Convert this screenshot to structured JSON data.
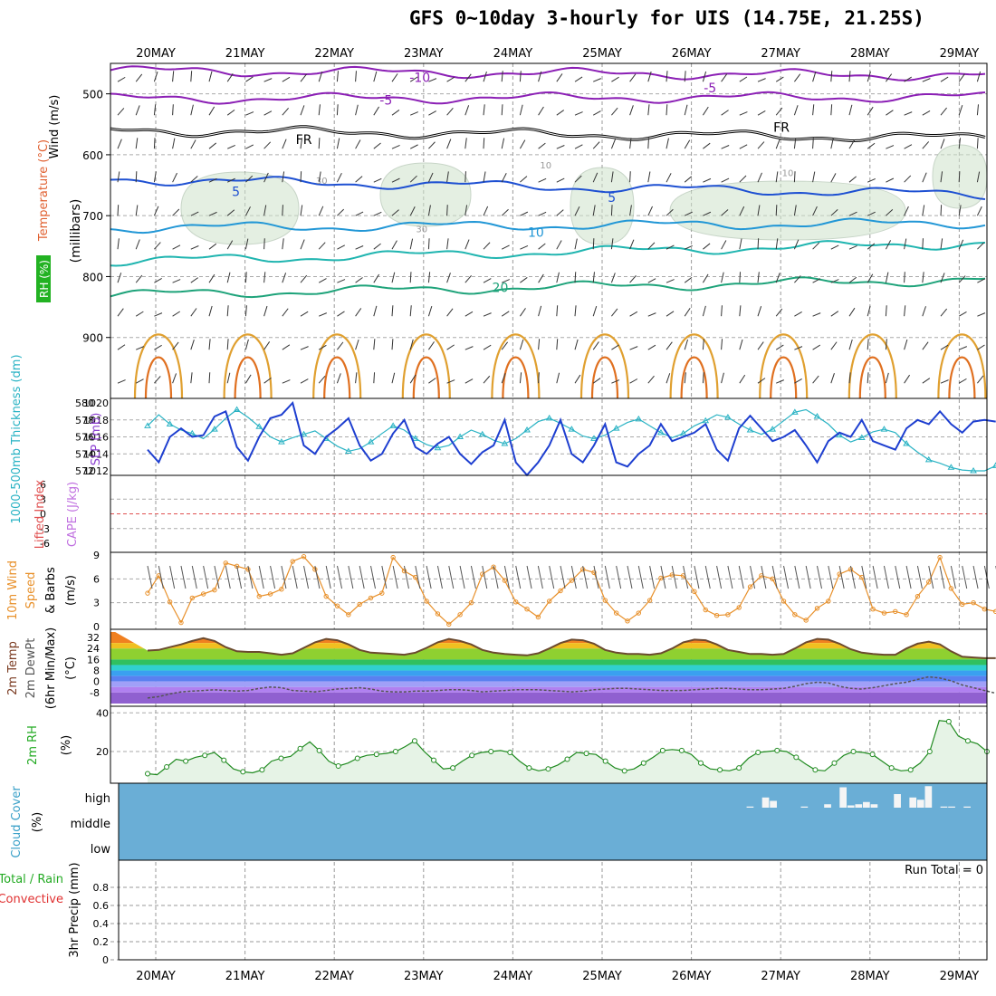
{
  "title": "GFS 0~10day 3-hourly for UIS (14.75E, 21.25S)",
  "dates": [
    "20MAY",
    "21MAY",
    "22MAY",
    "23MAY",
    "24MAY",
    "25MAY",
    "26MAY",
    "27MAY",
    "28MAY",
    "29MAY"
  ],
  "run_total": "Run Total = 0",
  "chart_data": [
    {
      "type": "contour",
      "panel": "upper-air",
      "ylabel_parts": [
        "Wind (m/s)",
        "Temperature (°C)",
        "RH (%)"
      ],
      "axis_title": "(millibars)",
      "yticks": [
        500,
        600,
        700,
        800,
        900
      ],
      "ylim": [
        1000,
        450
      ],
      "contour_labels": [
        {
          "text": "-10",
          "x": 3.05,
          "p": 473
        },
        {
          "text": "-5",
          "x": 2.67,
          "p": 510
        },
        {
          "text": "-5",
          "x": 6.3,
          "p": 490
        },
        {
          "text": "FR",
          "x": 1.75,
          "p": 575
        },
        {
          "text": "FR",
          "x": 7.1,
          "p": 555
        },
        {
          "text": "5",
          "x": 0.99,
          "p": 660
        },
        {
          "text": "5",
          "x": 5.2,
          "p": 670
        },
        {
          "text": "10",
          "x": 4.35,
          "p": 727
        },
        {
          "text": "20",
          "x": 3.95,
          "p": 818
        },
        {
          "text": "30",
          "x": 1.95,
          "p": 640
        },
        {
          "text": "10",
          "x": 4.46,
          "p": 615
        },
        {
          "text": "10",
          "x": 7.17,
          "p": 628
        },
        {
          "text": "30",
          "x": 3.07,
          "p": 720
        }
      ],
      "isotherms": [
        {
          "temp": -10,
          "color": "#8b1fb5",
          "p0": 462,
          "p1": 470
        },
        {
          "temp": -5,
          "color": "#8b1fb5",
          "p0": 508,
          "p1": 505
        },
        {
          "temp": 0,
          "color": "#000000",
          "p0": 560,
          "p1": 572
        },
        {
          "temp": 5,
          "color": "#1e50d2",
          "p0": 640,
          "p1": 665
        },
        {
          "temp": 10,
          "color": "#2297d6",
          "p0": 720,
          "p1": 712
        },
        {
          "temp": 15,
          "color": "#20b5b0",
          "p0": 775,
          "p1": 745
        },
        {
          "temp": 20,
          "color": "#1ea37a",
          "p0": 830,
          "p1": 805
        }
      ]
    },
    {
      "type": "line",
      "panel": "slp-thickness",
      "ylabel_left": "1000-500mb Thickness (dm)",
      "ylabel_right": "SLP (mb)",
      "left_ticks": [
        572,
        574,
        576,
        578,
        580
      ],
      "right_ticks": [
        1012,
        1014,
        1016,
        1018,
        1020
      ],
      "series": [
        {
          "name": "SLP (mb)",
          "color": "#2ab3c4",
          "values": [
            1017.3,
            1018.6,
            1017.5,
            1016.8,
            1016.4,
            1015.8,
            1016.9,
            1018.2,
            1019.2,
            1018.3,
            1017.2,
            1016.0,
            1015.4,
            1015.9,
            1016.3,
            1016.7,
            1015.8,
            1014.9,
            1014.3,
            1014.6,
            1015.4,
            1016.4,
            1017.3,
            1016.8,
            1015.8,
            1015.1,
            1014.7,
            1015.0,
            1016.0,
            1016.8,
            1016.3,
            1015.6,
            1015.2,
            1015.8,
            1016.8,
            1017.8,
            1018.2,
            1017.6,
            1016.9,
            1016.1,
            1015.8,
            1016.2,
            1017.0,
            1017.7,
            1018.1,
            1017.3,
            1016.5,
            1015.9,
            1016.4,
            1017.3,
            1017.9,
            1018.6,
            1018.3,
            1017.5,
            1016.8,
            1016.3,
            1016.9,
            1017.9,
            1018.9,
            1019.2,
            1018.4,
            1017.5,
            1016.2,
            1015.4,
            1015.9,
            1016.6,
            1016.9,
            1016.5,
            1015.2,
            1014.2,
            1013.3,
            1012.9,
            1012.4,
            1012.1,
            1012.0,
            1012.0,
            1012.6
          ]
        },
        {
          "name": "Thickness (dm)",
          "color": "#1e3fd0",
          "values": [
            574.5,
            573.0,
            576.0,
            577.0,
            576.0,
            576.2,
            578.4,
            579.0,
            574.8,
            573.2,
            576.0,
            578.2,
            578.6,
            580.0,
            575.0,
            574.0,
            576.0,
            577.0,
            578.2,
            575.0,
            573.2,
            574.0,
            576.4,
            578.0,
            574.8,
            574.0,
            575.2,
            576.0,
            574.0,
            572.8,
            574.2,
            575.0,
            578.0,
            573.0,
            571.5,
            573.0,
            575.0,
            578.0,
            574.0,
            573.0,
            575.0,
            577.5,
            573.0,
            572.5,
            574.0,
            575.0,
            577.5,
            575.5,
            576.0,
            576.5,
            577.5,
            574.5,
            573.2,
            577.0,
            578.5,
            577.0,
            575.5,
            576.0,
            576.8,
            575.0,
            573.0,
            575.5,
            576.5,
            576.0,
            578.0,
            575.5,
            575.0,
            574.5,
            577.0,
            578.0,
            577.5,
            579.0,
            577.5,
            576.5,
            577.8,
            578.0,
            577.8
          ]
        }
      ]
    },
    {
      "type": "line",
      "panel": "lifted-index-cape",
      "ylabel": "Lifted Index",
      "ylabel2": "CAPE (J/kg)",
      "yticks": [
        6,
        3,
        0,
        -3,
        -6
      ],
      "ylim": [
        6,
        -6
      ]
    },
    {
      "type": "line",
      "panel": "10m-wind",
      "ylabel": "10m Wind Speed & Barbs (m/s)",
      "ylabel_parts": [
        "10m Wind",
        "Speed",
        "& Barbs",
        "(m/s)"
      ],
      "yticks": [
        0,
        3,
        6,
        9
      ],
      "ylim": [
        0,
        9
      ],
      "series": [
        {
          "name": "10m Wind Speed",
          "color": "#e8902a",
          "values": [
            4.2,
            6.4,
            3.1,
            0.5,
            3.6,
            4.1,
            4.6,
            8.0,
            7.6,
            7.2,
            3.8,
            4.1,
            4.7,
            8.2,
            8.8,
            7.2,
            3.8,
            2.6,
            1.5,
            2.8,
            3.6,
            4.2,
            8.7,
            7.0,
            6.2,
            3.2,
            1.6,
            0.3,
            1.5,
            3.0,
            6.6,
            7.5,
            5.8,
            3.1,
            2.2,
            1.2,
            3.2,
            4.5,
            5.8,
            7.2,
            6.8,
            3.3,
            1.7,
            0.7,
            1.7,
            3.3,
            6.1,
            6.5,
            6.4,
            4.4,
            2.1,
            1.4,
            1.5,
            2.4,
            5.0,
            6.4,
            6.0,
            3.2,
            1.5,
            0.8,
            2.3,
            3.2,
            6.6,
            7.2,
            6.2,
            2.2,
            1.7,
            1.9,
            1.5,
            3.8,
            5.6,
            8.7,
            4.8,
            2.8,
            3.0,
            2.2,
            1.9
          ]
        }
      ]
    },
    {
      "type": "area",
      "panel": "2m-temp",
      "ylabel_parts": [
        "2m Temp",
        "2m DewPt",
        "(6hr Min/Max)",
        "(°C)"
      ],
      "yticks": [
        32,
        24,
        16,
        8,
        0,
        -8
      ],
      "ylim": [
        -16,
        36
      ],
      "series": [
        {
          "name": "2m Temp",
          "color": "#6b4a2f",
          "values": [
            22.5,
            23.0,
            25.0,
            27.0,
            29.5,
            31.5,
            29.5,
            25.0,
            22.0,
            21.5,
            21.5,
            20.5,
            19.5,
            20.5,
            24.5,
            28.5,
            31.0,
            30.0,
            27.0,
            23.0,
            21.0,
            20.5,
            20.0,
            19.5,
            21.0,
            24.5,
            28.5,
            31.0,
            29.5,
            27.0,
            23.0,
            21.0,
            20.0,
            19.5,
            19.0,
            20.5,
            24.0,
            28.0,
            30.5,
            30.0,
            27.5,
            23.0,
            21.0,
            20.0,
            20.0,
            19.5,
            20.5,
            24.0,
            28.5,
            30.5,
            30.0,
            27.0,
            23.0,
            21.5,
            20.0,
            20.0,
            19.5,
            20.0,
            24.0,
            28.5,
            31.0,
            30.5,
            27.5,
            23.5,
            21.0,
            20.0,
            19.5,
            19.5,
            24.0,
            27.5,
            29.0,
            27.0,
            22.0,
            18.0,
            17.5,
            17.0,
            17.0
          ]
        },
        {
          "name": "2m DewPt",
          "color": "#555555",
          "values": [
            -12.0,
            -11.0,
            -9.0,
            -7.5,
            -7.0,
            -6.5,
            -6.0,
            -6.5,
            -7.0,
            -6.5,
            -5.0,
            -4.0,
            -4.5,
            -6.5,
            -7.0,
            -7.5,
            -6.5,
            -5.5,
            -5.0,
            -4.5,
            -5.5,
            -7.0,
            -7.5,
            -7.5,
            -7.0,
            -7.0,
            -6.5,
            -6.0,
            -6.0,
            -6.5,
            -7.5,
            -7.0,
            -6.5,
            -6.0,
            -6.0,
            -6.0,
            -6.5,
            -7.0,
            -7.5,
            -7.0,
            -6.0,
            -5.5,
            -5.0,
            -5.0,
            -5.5,
            -6.0,
            -6.5,
            -6.5,
            -6.5,
            -6.0,
            -5.5,
            -5.0,
            -5.0,
            -5.5,
            -6.0,
            -6.0,
            -5.5,
            -5.0,
            -3.5,
            -1.5,
            -0.5,
            -1.0,
            -3.5,
            -5.0,
            -5.5,
            -4.5,
            -3.0,
            -1.5,
            -0.5,
            1.5,
            3.5,
            2.5,
            0.5,
            -2.5,
            -4.5,
            -6.5,
            -8.5
          ]
        }
      ]
    },
    {
      "type": "area",
      "panel": "2m-rh",
      "ylabel": "2m RH (%)",
      "yticks": [
        20,
        40
      ],
      "ylim": [
        5,
        42
      ],
      "series": [
        {
          "name": "2m RH",
          "color": "#1f8a1f",
          "values": [
            8.5,
            8.0,
            12.0,
            16.0,
            15.0,
            17.0,
            18.0,
            19.5,
            15.5,
            11.0,
            9.5,
            9.0,
            10.5,
            15.0,
            16.5,
            17.5,
            21.5,
            25.0,
            20.5,
            15.0,
            12.5,
            14.0,
            16.5,
            18.0,
            18.5,
            19.0,
            20.0,
            22.5,
            25.5,
            20.0,
            15.5,
            11.0,
            11.5,
            15.0,
            18.0,
            19.5,
            20.0,
            20.5,
            19.5,
            15.0,
            11.5,
            10.0,
            11.0,
            13.0,
            16.0,
            19.5,
            19.0,
            18.5,
            15.0,
            11.5,
            10.0,
            11.0,
            14.0,
            17.0,
            20.5,
            21.0,
            20.5,
            18.5,
            14.0,
            11.0,
            10.5,
            10.0,
            11.5,
            16.5,
            19.5,
            20.0,
            20.5,
            20.0,
            17.0,
            13.5,
            10.5,
            10.0,
            14.0,
            18.0,
            20.0,
            19.5,
            18.5,
            15.0,
            11.5,
            10.0,
            10.5,
            14.0,
            20.0,
            36.0,
            35.5,
            28.0,
            25.5,
            24.0,
            20.0
          ]
        }
      ]
    },
    {
      "type": "bar",
      "panel": "cloud-cover",
      "ylabel": "Cloud Cover (%)",
      "category_labels": [
        "high",
        "middle",
        "low"
      ],
      "high_cloud_values": [
        0,
        0,
        0,
        0,
        0,
        0,
        0,
        0,
        0,
        0,
        0,
        0,
        0,
        0,
        0,
        0,
        0,
        0,
        0,
        0,
        0,
        0,
        0,
        0,
        0,
        0,
        0,
        0,
        0,
        0,
        0,
        0,
        0,
        0,
        0,
        0,
        0,
        0,
        0,
        0,
        0,
        0,
        0,
        0,
        0,
        0,
        0,
        0,
        0,
        0,
        0,
        0,
        0,
        0,
        0,
        0,
        0,
        0,
        0,
        0,
        0,
        0,
        0,
        0,
        0,
        0,
        0,
        0,
        0,
        0,
        0,
        0,
        0,
        0,
        0,
        0,
        0,
        0,
        0,
        0,
        0,
        5,
        0,
        45,
        30,
        0,
        0,
        0,
        5,
        0,
        0,
        15,
        0,
        90,
        10,
        15,
        25,
        15,
        0,
        0,
        60,
        0,
        45,
        35,
        95,
        0,
        5,
        5,
        0,
        5,
        0,
        0
      ]
    },
    {
      "type": "bar",
      "panel": "precip",
      "ylabel": "3hr Precip (mm)",
      "side_label_parts": [
        "Total / Rain",
        "Convective"
      ],
      "yticks": [
        0,
        0.2,
        0.4,
        0.6,
        0.8
      ],
      "ylim": [
        0,
        1
      ],
      "values": []
    }
  ]
}
